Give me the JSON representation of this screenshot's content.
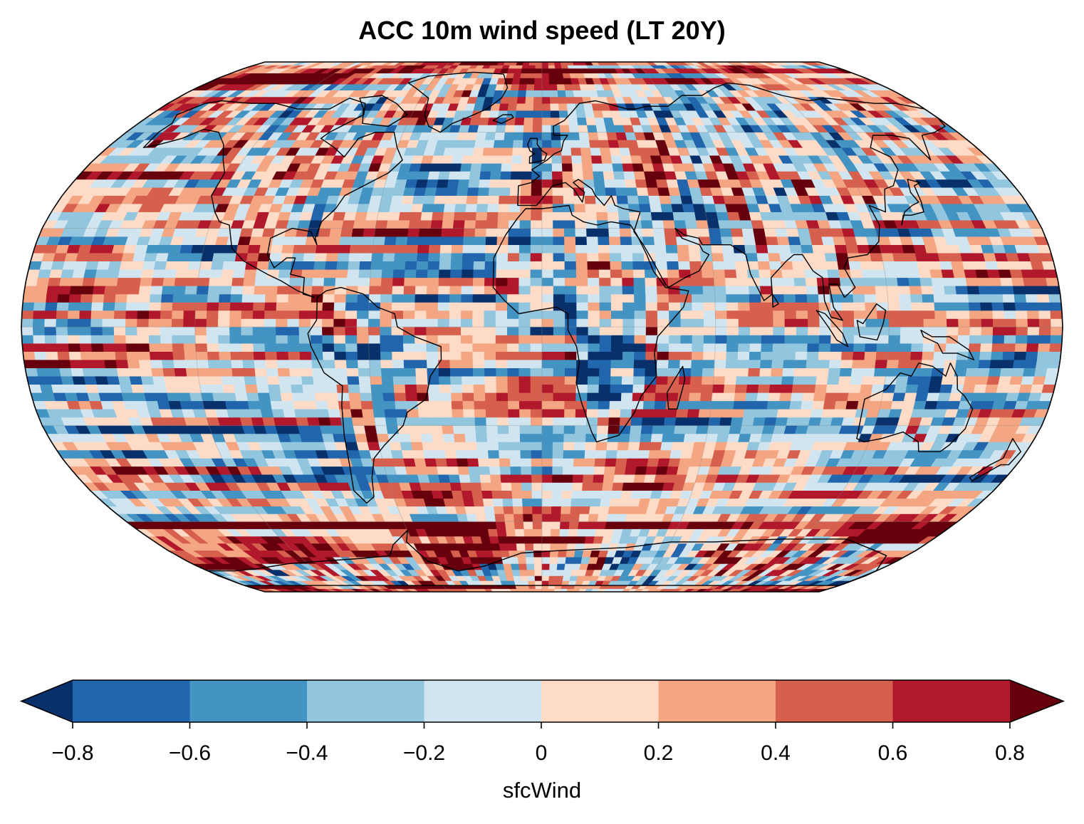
{
  "title": "ACC 10m wind speed (LT 20Y)",
  "colorbar": {
    "label": "sfcWind",
    "ticks": [
      "−0.8",
      "−0.6",
      "−0.4",
      "−0.2",
      "0",
      "0.2",
      "0.4",
      "0.6",
      "0.8"
    ],
    "levels": [
      -0.8,
      -0.6,
      -0.4,
      -0.2,
      0,
      0.2,
      0.4,
      0.6,
      0.8
    ],
    "extend": "both",
    "under_color": "#08306b",
    "over_color": "#67000d",
    "bin_colors": [
      "#2166ac",
      "#4393c3",
      "#92c5de",
      "#d1e5f0",
      "#fddbc7",
      "#f4a582",
      "#d6604d",
      "#b2182b"
    ]
  },
  "map": {
    "projection": "Robinson",
    "variable": "sfcWind",
    "coastlines": true,
    "gridlines": true
  }
}
